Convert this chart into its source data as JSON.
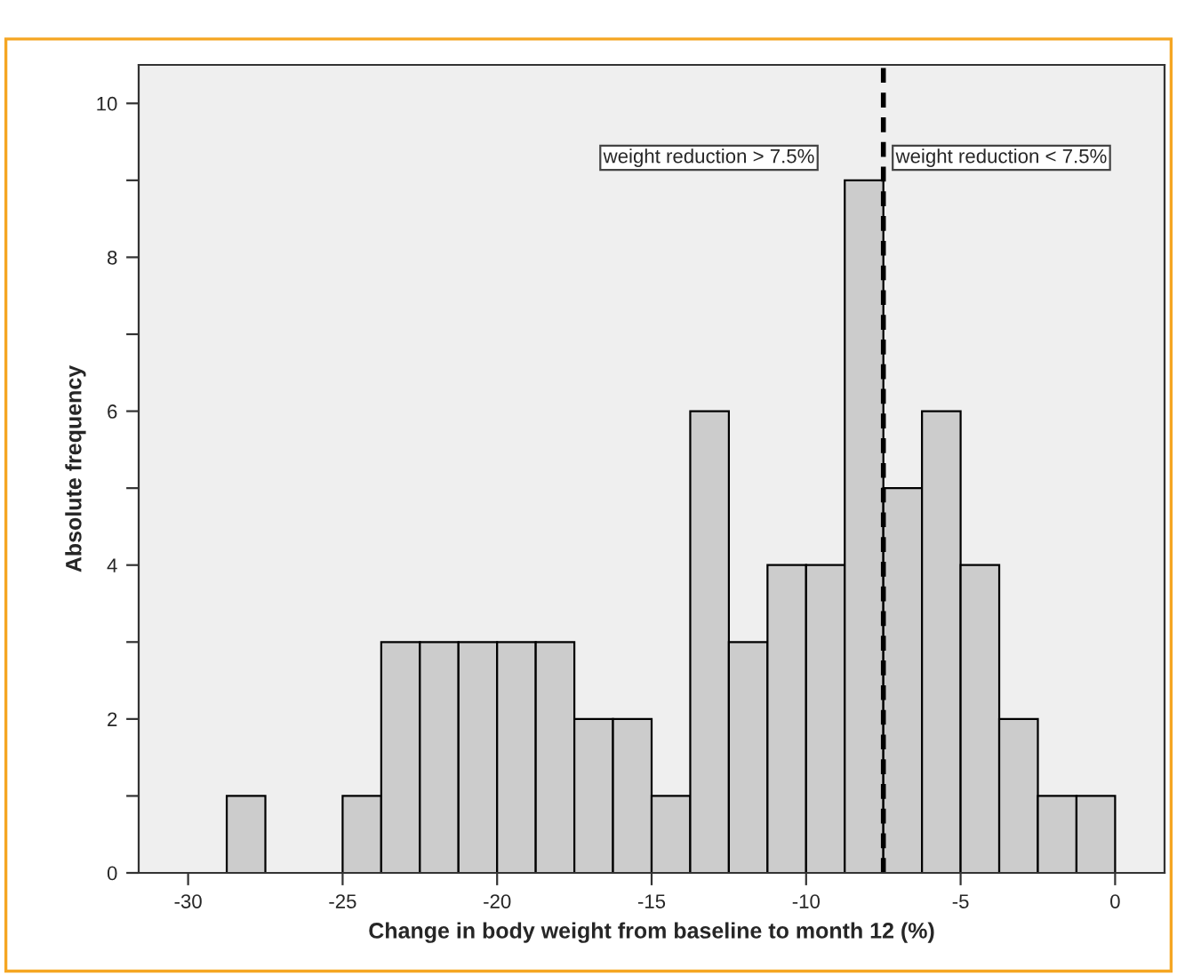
{
  "chart_data": {
    "type": "histogram",
    "xlabel": "Change in body weight from baseline to month 12 (%)",
    "ylabel": "Absolute frequency",
    "bins": [
      -30,
      -28.75,
      -27.5,
      -26.25,
      -25,
      -23.75,
      -22.5,
      -21.25,
      -20,
      -18.75,
      -17.5,
      -16.25,
      -15,
      -13.75,
      -12.5,
      -11.25,
      -10,
      -8.75,
      -7.5,
      -6.25,
      -5,
      -3.75,
      -2.5,
      -1.25,
      0
    ],
    "values": [
      0,
      1,
      0,
      0,
      1,
      3,
      3,
      3,
      3,
      3,
      2,
      2,
      1,
      6,
      3,
      4,
      4,
      9,
      5,
      6,
      4,
      2,
      1,
      1
    ],
    "color": "#cccccc",
    "xlim": [
      -31.6,
      1.6
    ],
    "ylim": [
      0,
      10.5
    ],
    "xticks": [
      -30,
      -25,
      -20,
      -15,
      -10,
      -5,
      0
    ],
    "yticks": [
      0,
      {
        "value": 1,
        "label": null
      },
      2,
      {
        "value": 3,
        "label": null
      },
      4,
      {
        "value": 5,
        "label": null
      },
      6,
      {
        "value": 7,
        "label": null
      },
      8,
      {
        "value": 9,
        "label": null
      },
      10
    ],
    "ref_lines": [
      {
        "axis": "x",
        "value": -7.5,
        "color": "#000000",
        "line_style": "dashed"
      }
    ],
    "annotations": [
      "weight reduction > 7.5%",
      "weight reduction < 7.5%"
    ],
    "grid": false
  }
}
